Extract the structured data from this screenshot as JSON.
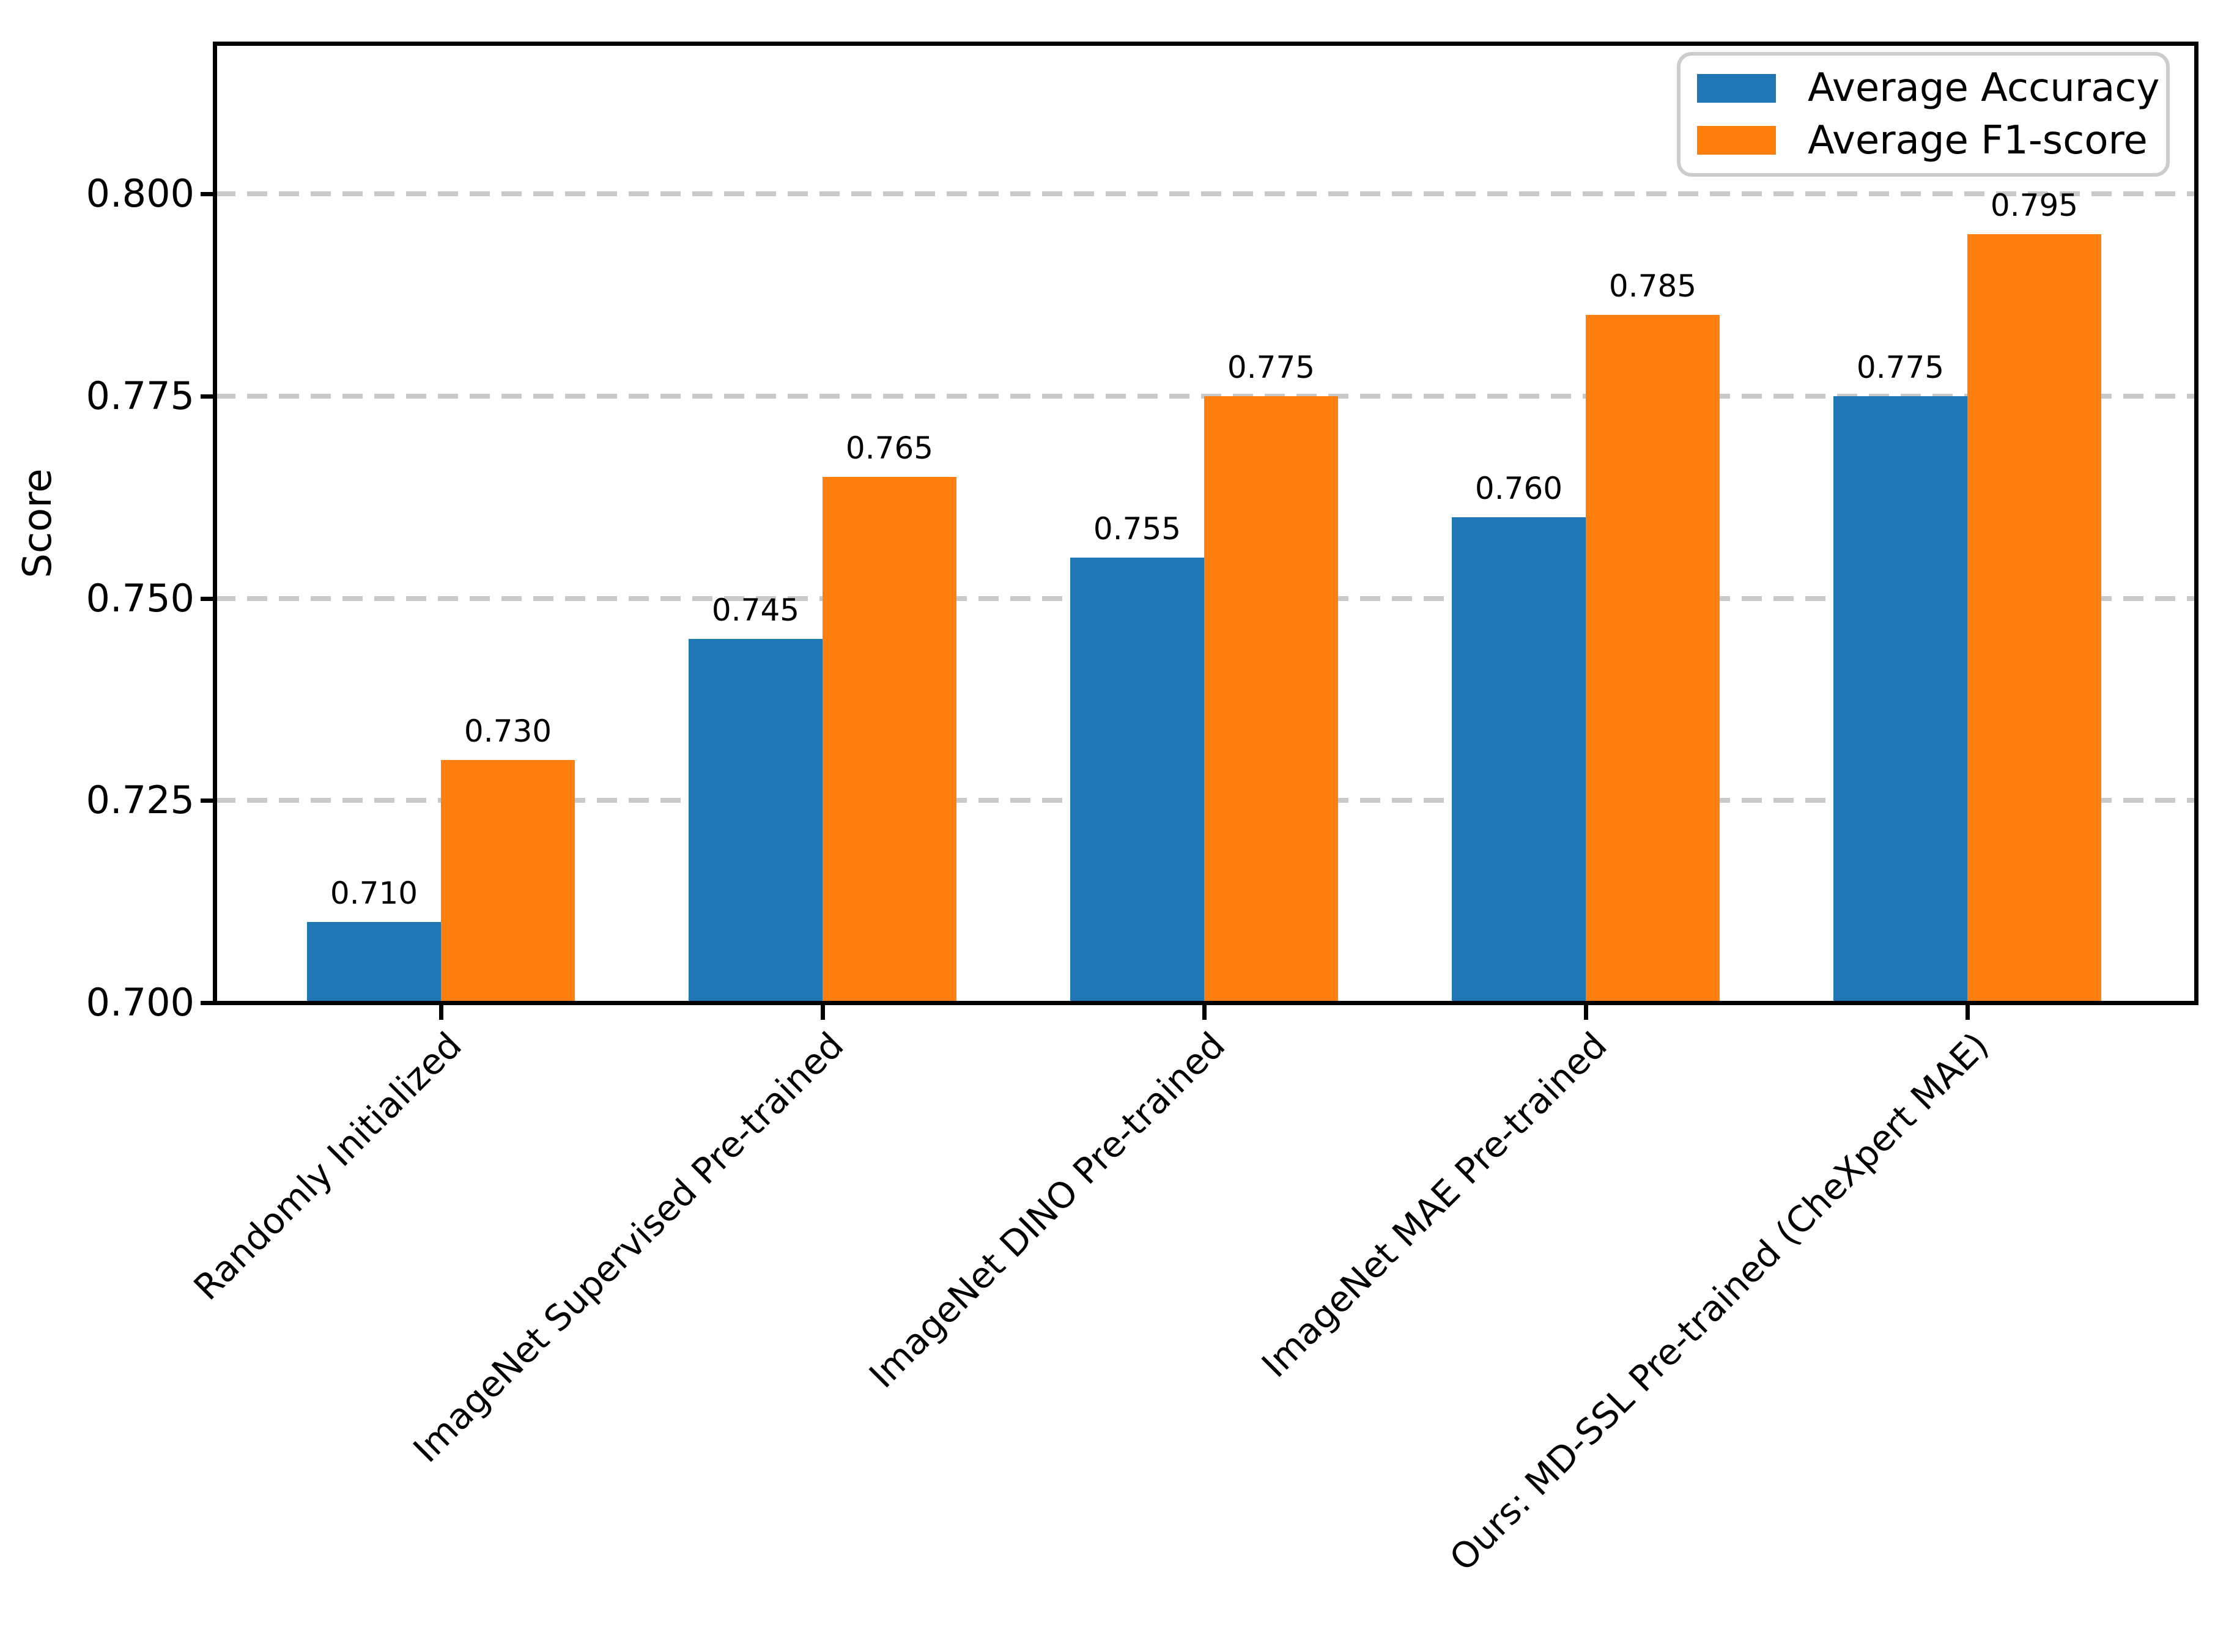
{
  "chart_data": {
    "type": "bar",
    "title": "",
    "xlabel": "",
    "ylabel": "Score",
    "categories": [
      "Randomly Initialized",
      "ImageNet Supervised Pre-trained",
      "ImageNet DINO Pre-trained",
      "ImageNet MAE Pre-trained",
      "Ours: MD-SSL Pre-trained (CheXpert MAE)"
    ],
    "series": [
      {
        "name": "Average Accuracy",
        "color": "#1f77b4",
        "values": [
          0.71,
          0.745,
          0.755,
          0.76,
          0.775
        ]
      },
      {
        "name": "Average F1-score",
        "color": "#ff7f0e",
        "values": [
          0.73,
          0.765,
          0.775,
          0.785,
          0.795
        ]
      }
    ],
    "bar_value_labels": [
      [
        "0.710",
        "0.745",
        "0.755",
        "0.760",
        "0.775"
      ],
      [
        "0.730",
        "0.765",
        "0.775",
        "0.785",
        "0.795"
      ]
    ],
    "ylim": [
      0.7,
      0.8185
    ],
    "yticks": [
      0.7,
      0.725,
      0.75,
      0.775,
      0.8
    ],
    "ytick_labels": [
      "0.700",
      "0.725",
      "0.750",
      "0.775",
      "0.800"
    ],
    "grid": {
      "axis": "y",
      "style": "dashed",
      "color": "#c9c9c9",
      "axisbelow": true
    },
    "legend": {
      "position": "upper right"
    },
    "colors": {
      "background": "#ffffff",
      "spine": "#000000",
      "text": "#000000"
    }
  }
}
